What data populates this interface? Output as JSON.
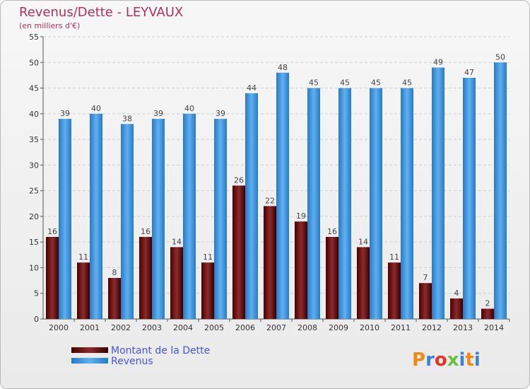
{
  "chart_data": {
    "type": "bar",
    "title": "Revenus/Dette - LEYVAUX",
    "subtitle": "(en milliers d'€)",
    "categories": [
      "2000",
      "2001",
      "2002",
      "2003",
      "2004",
      "2005",
      "2006",
      "2007",
      "2008",
      "2009",
      "2010",
      "2011",
      "2012",
      "2013",
      "2014"
    ],
    "series": [
      {
        "name": "Montant de la Dette",
        "color": "#7a1a1a",
        "values": [
          16,
          11,
          8,
          16,
          14,
          11,
          26,
          22,
          19,
          16,
          14,
          11,
          7,
          4,
          2
        ]
      },
      {
        "name": "Revenus",
        "color": "#4a9ee8",
        "values": [
          39,
          40,
          38,
          39,
          40,
          39,
          44,
          48,
          45,
          45,
          45,
          45,
          49,
          47,
          50
        ]
      }
    ],
    "ylim": [
      0,
      55
    ],
    "yticks": [
      0,
      5,
      10,
      15,
      20,
      25,
      30,
      35,
      40,
      45,
      50,
      55
    ],
    "grid": true,
    "legend": "bottom-left"
  },
  "logo": {
    "text": "Proxiti",
    "colors": [
      "#f08a1c",
      "#3b82d8",
      "#e6332a",
      "#6abf3f",
      "#3b82d8",
      "#f08a1c",
      "#3b82d8"
    ]
  }
}
